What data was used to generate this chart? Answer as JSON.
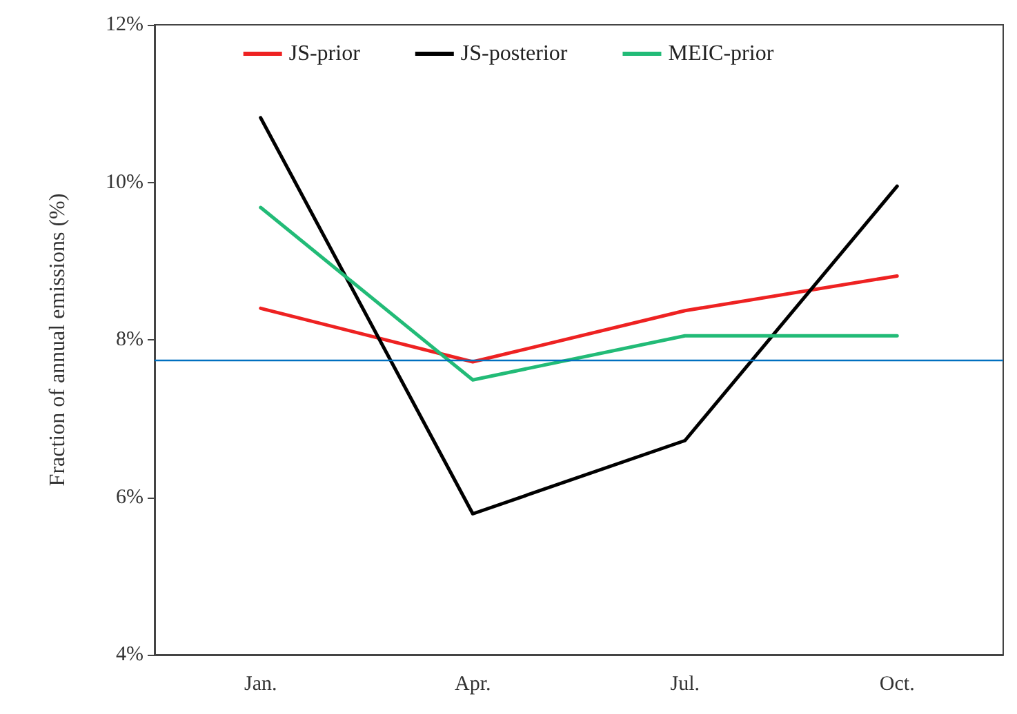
{
  "chart_data": {
    "type": "line",
    "ylabel": "Fraction of annual emissions (%)",
    "categories": [
      "Jan.",
      "Apr.",
      "Jul.",
      "Oct."
    ],
    "series": [
      {
        "name": "JS-prior",
        "color": "#ee2222",
        "values": [
          8.4,
          7.72,
          8.37,
          8.81
        ]
      },
      {
        "name": "JS-posterior",
        "color": "#000000",
        "values": [
          10.82,
          5.79,
          6.72,
          9.95
        ]
      },
      {
        "name": "MEIC-prior",
        "color": "#22bb77",
        "values": [
          9.68,
          7.49,
          8.05,
          8.05
        ]
      }
    ],
    "ylim": [
      4,
      12
    ],
    "yticks": [
      {
        "value": 4,
        "label": "4%"
      },
      {
        "value": 6,
        "label": "6%"
      },
      {
        "value": 8,
        "label": "8%"
      },
      {
        "value": 10,
        "label": "10%"
      },
      {
        "value": 12,
        "label": "12%"
      }
    ],
    "ref_lines": [
      {
        "axis": "y",
        "value": 7.74,
        "label": null,
        "color": "#0070c0"
      }
    ],
    "grid": false,
    "legend": "top",
    "marker": "none",
    "line_style": "solid"
  }
}
